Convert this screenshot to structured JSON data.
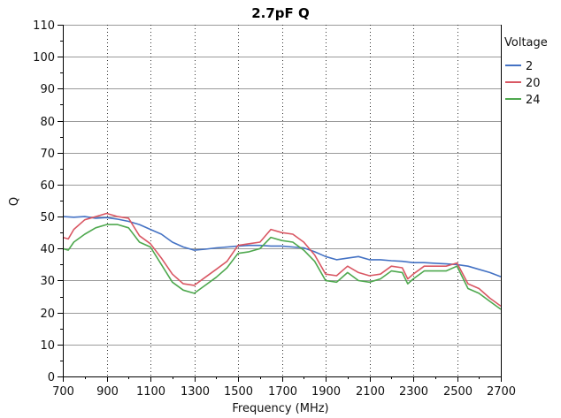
{
  "chart_data": {
    "type": "line",
    "title": "2.7pF Q",
    "xlabel": "Frequency (MHz)",
    "ylabel": "Q",
    "xlim": [
      700,
      2700
    ],
    "ylim": [
      0,
      110
    ],
    "xticks": [
      700,
      900,
      1100,
      1300,
      1500,
      1700,
      1900,
      2100,
      2300,
      2500,
      2700
    ],
    "yticks": [
      0,
      10,
      20,
      30,
      40,
      50,
      60,
      70,
      80,
      90,
      100,
      110
    ],
    "grid": {
      "horizontal": "solid",
      "vertical": "dotted"
    },
    "legend": {
      "title": "Voltage",
      "placement": "right"
    },
    "series": [
      {
        "name": "2",
        "color": "#4472c4",
        "points": [
          [
            700,
            50
          ],
          [
            750,
            49.8
          ],
          [
            800,
            50
          ],
          [
            850,
            49.5
          ],
          [
            900,
            49.7
          ],
          [
            950,
            49.2
          ],
          [
            1000,
            48.5
          ],
          [
            1050,
            47.5
          ],
          [
            1100,
            46
          ],
          [
            1150,
            44.5
          ],
          [
            1200,
            42
          ],
          [
            1250,
            40.5
          ],
          [
            1300,
            39.5
          ],
          [
            1350,
            39.8
          ],
          [
            1400,
            40.2
          ],
          [
            1450,
            40.5
          ],
          [
            1500,
            40.8
          ],
          [
            1550,
            41
          ],
          [
            1600,
            41
          ],
          [
            1650,
            40.8
          ],
          [
            1700,
            40.8
          ],
          [
            1750,
            40.5
          ],
          [
            1800,
            40.2
          ],
          [
            1850,
            39
          ],
          [
            1900,
            37.5
          ],
          [
            1950,
            36.5
          ],
          [
            2000,
            37
          ],
          [
            2050,
            37.5
          ],
          [
            2100,
            36.5
          ],
          [
            2150,
            36.5
          ],
          [
            2200,
            36.2
          ],
          [
            2250,
            36
          ],
          [
            2300,
            35.6
          ],
          [
            2350,
            35.6
          ],
          [
            2400,
            35.4
          ],
          [
            2450,
            35.2
          ],
          [
            2500,
            35
          ],
          [
            2550,
            34.5
          ],
          [
            2600,
            33.5
          ],
          [
            2650,
            32.5
          ],
          [
            2700,
            31.2
          ]
        ]
      },
      {
        "name": "20",
        "color": "#d95763",
        "points": [
          [
            700,
            43.5
          ],
          [
            725,
            43
          ],
          [
            750,
            46
          ],
          [
            800,
            49
          ],
          [
            850,
            50
          ],
          [
            900,
            51
          ],
          [
            950,
            50
          ],
          [
            1000,
            49.5
          ],
          [
            1050,
            44
          ],
          [
            1100,
            41.5
          ],
          [
            1150,
            37
          ],
          [
            1200,
            32
          ],
          [
            1250,
            29
          ],
          [
            1300,
            28.5
          ],
          [
            1350,
            31
          ],
          [
            1400,
            33.5
          ],
          [
            1450,
            36
          ],
          [
            1500,
            41
          ],
          [
            1550,
            41.5
          ],
          [
            1600,
            42
          ],
          [
            1650,
            46
          ],
          [
            1700,
            45
          ],
          [
            1750,
            44.5
          ],
          [
            1800,
            42
          ],
          [
            1850,
            38
          ],
          [
            1900,
            32
          ],
          [
            1950,
            31.5
          ],
          [
            2000,
            34.5
          ],
          [
            2050,
            32.5
          ],
          [
            2100,
            31.5
          ],
          [
            2150,
            32
          ],
          [
            2200,
            34.5
          ],
          [
            2250,
            34
          ],
          [
            2275,
            30.5
          ],
          [
            2300,
            32
          ],
          [
            2350,
            34.5
          ],
          [
            2400,
            34.5
          ],
          [
            2450,
            34.5
          ],
          [
            2500,
            35.5
          ],
          [
            2550,
            29
          ],
          [
            2600,
            27.5
          ],
          [
            2650,
            24.5
          ],
          [
            2700,
            22
          ]
        ]
      },
      {
        "name": "24",
        "color": "#4ea84e",
        "points": [
          [
            700,
            40
          ],
          [
            725,
            39.5
          ],
          [
            750,
            42
          ],
          [
            800,
            44.5
          ],
          [
            850,
            46.5
          ],
          [
            900,
            47.5
          ],
          [
            950,
            47.5
          ],
          [
            1000,
            46.5
          ],
          [
            1050,
            42
          ],
          [
            1100,
            40.5
          ],
          [
            1150,
            35
          ],
          [
            1200,
            29.5
          ],
          [
            1250,
            27
          ],
          [
            1300,
            26
          ],
          [
            1350,
            28.5
          ],
          [
            1400,
            31
          ],
          [
            1450,
            34
          ],
          [
            1500,
            38.5
          ],
          [
            1550,
            39
          ],
          [
            1600,
            40
          ],
          [
            1650,
            43.5
          ],
          [
            1700,
            42.5
          ],
          [
            1750,
            42
          ],
          [
            1800,
            39.5
          ],
          [
            1850,
            36
          ],
          [
            1900,
            30
          ],
          [
            1950,
            29.5
          ],
          [
            2000,
            32.5
          ],
          [
            2050,
            30
          ],
          [
            2100,
            29.5
          ],
          [
            2150,
            30.5
          ],
          [
            2200,
            33
          ],
          [
            2250,
            32.5
          ],
          [
            2275,
            29
          ],
          [
            2300,
            30.5
          ],
          [
            2350,
            33
          ],
          [
            2400,
            33
          ],
          [
            2450,
            33
          ],
          [
            2500,
            34.5
          ],
          [
            2550,
            27.5
          ],
          [
            2600,
            26
          ],
          [
            2650,
            23.5
          ],
          [
            2700,
            21
          ]
        ]
      }
    ]
  }
}
